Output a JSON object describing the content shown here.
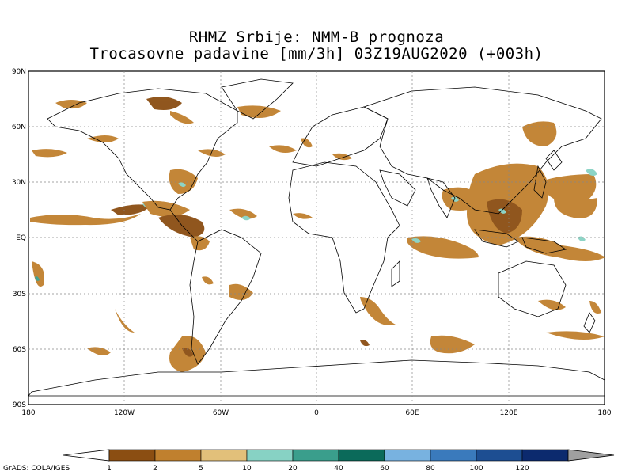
{
  "title_line1": "RHMZ Srbije: NMM-B prognoza",
  "title_line2": "Trocasovne padavine [mm/3h] 03Z19AUG2020 (+003h)",
  "credit": "GrADS: COLA/IGES",
  "map": {
    "lon_range": [
      -180,
      180
    ],
    "lat_range": [
      -90,
      90
    ],
    "grid": true,
    "lat_ticks": [
      "90N",
      "60N",
      "30N",
      "EQ",
      "30S",
      "60S",
      "90S"
    ],
    "lon_ticks": [
      "180",
      "120W",
      "60W",
      "0",
      "60E",
      "120E",
      "180"
    ]
  },
  "colorbar": {
    "labels": [
      "1",
      "2",
      "5",
      "10",
      "20",
      "40",
      "60",
      "80",
      "100",
      "120"
    ],
    "colors": [
      "#8b4e12",
      "#c0802e",
      "#e2c07a",
      "#87d2c4",
      "#3a9e8c",
      "#0b6a5a",
      "#78b2e0",
      "#3a7abc",
      "#1d4e92",
      "#0c2a6e"
    ],
    "below_color": "#ffffff",
    "above_color": "#a0a0a0"
  }
}
